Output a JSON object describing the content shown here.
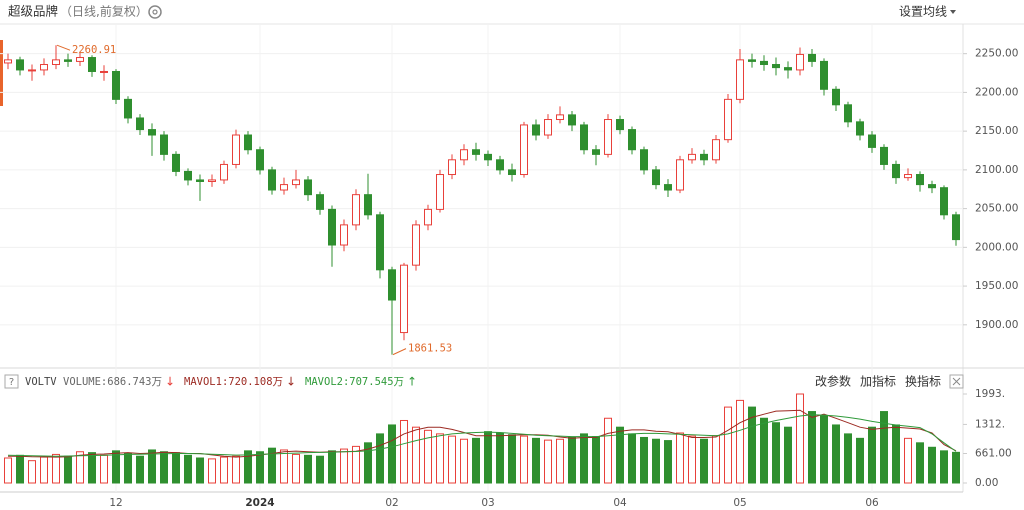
{
  "header": {
    "title": "超级品牌",
    "subtitle": "（日线,前复权）",
    "ma_setting": "设置均线"
  },
  "indicator": {
    "name": "VOLTV",
    "buttons": [
      "改参数",
      "加指标",
      "换指标"
    ]
  },
  "chart_data": [
    {
      "type": "candlestick",
      "categories": [
        null,
        null,
        null,
        null,
        null,
        null,
        null,
        null,
        null,
        "12",
        null,
        null,
        null,
        null,
        null,
        null,
        null,
        null,
        null,
        null,
        null,
        "2024",
        null,
        null,
        null,
        null,
        null,
        null,
        null,
        null,
        null,
        null,
        "02",
        null,
        null,
        null,
        null,
        null,
        null,
        null,
        "03",
        null,
        null,
        null,
        null,
        null,
        null,
        null,
        null,
        null,
        null,
        "04",
        null,
        null,
        null,
        null,
        null,
        null,
        null,
        null,
        null,
        "05",
        null,
        null,
        null,
        null,
        null,
        null,
        null,
        null,
        null,
        null,
        "06",
        null,
        null,
        null,
        null,
        null,
        null,
        null
      ],
      "candles": [
        [
          2238,
          2250,
          2230,
          2242
        ],
        [
          2242,
          2246,
          2222,
          2229
        ],
        [
          2229,
          2236,
          2215,
          2229
        ],
        [
          2229,
          2244,
          2222,
          2236
        ],
        [
          2236,
          2260.91,
          2230,
          2242
        ],
        [
          2242,
          2250,
          2233,
          2240
        ],
        [
          2240,
          2252,
          2234,
          2245
        ],
        [
          2245,
          2248,
          2220,
          2227
        ],
        [
          2227,
          2235,
          2215,
          2227
        ],
        [
          2227,
          2230,
          2185,
          2191
        ],
        [
          2191,
          2195,
          2160,
          2167
        ],
        [
          2167,
          2172,
          2145,
          2152
        ],
        [
          2152,
          2160,
          2118,
          2145
        ],
        [
          2145,
          2150,
          2112,
          2120
        ],
        [
          2120,
          2124,
          2092,
          2098
        ],
        [
          2098,
          2102,
          2080,
          2087
        ],
        [
          2087,
          2094,
          2060,
          2085
        ],
        [
          2085,
          2094,
          2078,
          2087
        ],
        [
          2087,
          2112,
          2082,
          2107
        ],
        [
          2107,
          2152,
          2102,
          2145
        ],
        [
          2145,
          2150,
          2120,
          2126
        ],
        [
          2126,
          2130,
          2094,
          2100
        ],
        [
          2100,
          2104,
          2068,
          2074
        ],
        [
          2074,
          2090,
          2068,
          2081
        ],
        [
          2081,
          2100,
          2076,
          2087
        ],
        [
          2087,
          2092,
          2060,
          2068
        ],
        [
          2068,
          2072,
          2042,
          2049
        ],
        [
          2049,
          2054,
          1975,
          2003
        ],
        [
          2003,
          2036,
          1995,
          2029
        ],
        [
          2029,
          2075,
          2022,
          2068
        ],
        [
          2068,
          2095,
          2036,
          2042
        ],
        [
          2042,
          2046,
          1960,
          1971
        ],
        [
          1971,
          1975,
          1861.53,
          1932
        ],
        [
          1890,
          1980,
          1880,
          1977
        ],
        [
          1977,
          2035,
          1970,
          2029
        ],
        [
          2029,
          2055,
          2022,
          2049
        ],
        [
          2049,
          2100,
          2045,
          2094
        ],
        [
          2094,
          2120,
          2088,
          2113
        ],
        [
          2113,
          2133,
          2106,
          2126
        ],
        [
          2126,
          2135,
          2112,
          2120
        ],
        [
          2120,
          2125,
          2105,
          2113
        ],
        [
          2113,
          2118,
          2094,
          2100
        ],
        [
          2100,
          2108,
          2085,
          2094
        ],
        [
          2094,
          2162,
          2090,
          2158
        ],
        [
          2158,
          2165,
          2138,
          2145
        ],
        [
          2145,
          2172,
          2140,
          2165
        ],
        [
          2165,
          2182,
          2160,
          2171
        ],
        [
          2171,
          2176,
          2150,
          2158
        ],
        [
          2158,
          2162,
          2120,
          2126
        ],
        [
          2126,
          2132,
          2106,
          2120
        ],
        [
          2120,
          2172,
          2116,
          2165
        ],
        [
          2165,
          2170,
          2146,
          2152
        ],
        [
          2152,
          2156,
          2120,
          2126
        ],
        [
          2126,
          2130,
          2094,
          2100
        ],
        [
          2100,
          2105,
          2075,
          2081
        ],
        [
          2081,
          2088,
          2065,
          2074
        ],
        [
          2074,
          2118,
          2070,
          2113
        ],
        [
          2113,
          2128,
          2108,
          2120
        ],
        [
          2120,
          2126,
          2106,
          2113
        ],
        [
          2113,
          2145,
          2108,
          2139
        ],
        [
          2139,
          2198,
          2135,
          2191
        ],
        [
          2191,
          2256,
          2186,
          2242
        ],
        [
          2242,
          2250,
          2232,
          2240
        ],
        [
          2240,
          2248,
          2228,
          2236
        ],
        [
          2236,
          2245,
          2222,
          2232
        ],
        [
          2232,
          2240,
          2218,
          2229
        ],
        [
          2229,
          2258,
          2222,
          2249
        ],
        [
          2249,
          2256,
          2233,
          2240
        ],
        [
          2240,
          2244,
          2196,
          2204
        ],
        [
          2204,
          2208,
          2176,
          2184
        ],
        [
          2184,
          2188,
          2155,
          2162
        ],
        [
          2162,
          2166,
          2138,
          2145
        ],
        [
          2145,
          2150,
          2122,
          2129
        ],
        [
          2129,
          2133,
          2100,
          2107
        ],
        [
          2107,
          2112,
          2082,
          2090
        ],
        [
          2090,
          2102,
          2086,
          2094
        ],
        [
          2094,
          2098,
          2072,
          2081
        ],
        [
          2081,
          2086,
          2070,
          2077
        ],
        [
          2077,
          2080,
          2036,
          2042
        ],
        [
          2042,
          2046,
          2002,
          2010
        ]
      ],
      "up_color": "#e8403a",
      "down_color": "#2f8f2f",
      "ylim": [
        1852,
        2287
      ],
      "yticks": [
        {
          "value": 1900,
          "label": "1900.00"
        },
        {
          "value": 1950,
          "label": "1950.00"
        },
        {
          "value": 2000,
          "label": "2000.00"
        },
        {
          "value": 2050,
          "label": "2050.00"
        },
        {
          "value": 2100,
          "label": "2100.00"
        },
        {
          "value": 2150,
          "label": "2150.00"
        },
        {
          "value": 2200,
          "label": "2200.00"
        },
        {
          "value": 2250,
          "label": "2250.00"
        }
      ],
      "grid": true
    },
    {
      "type": "bar",
      "name": "VOLUME:686.743万",
      "trend": "↓",
      "values": [
        560,
        620,
        500,
        580,
        640,
        600,
        700,
        680,
        620,
        720,
        660,
        600,
        740,
        700,
        680,
        620,
        560,
        540,
        580,
        600,
        720,
        700,
        780,
        740,
        640,
        620,
        600,
        720,
        760,
        820,
        900,
        1100,
        1300,
        1400,
        1250,
        1180,
        1100,
        1050,
        980,
        1000,
        1150,
        1120,
        1080,
        1050,
        1000,
        960,
        980,
        1020,
        1100,
        1040,
        1450,
        1250,
        1100,
        1020,
        980,
        950,
        1120,
        1050,
        980,
        1060,
        1700,
        1850,
        1700,
        1450,
        1350,
        1250,
        1993,
        1600,
        1500,
        1300,
        1100,
        1000,
        1250,
        1600,
        1300,
        1000,
        900,
        800,
        720,
        686.743
      ],
      "series": [
        {
          "name": "MAVOL1:720.108万",
          "trend": "↓",
          "color": "#9c2a22",
          "values": [
            600,
            600,
            590,
            585,
            580,
            590,
            620,
            640,
            650,
            665,
            680,
            660,
            670,
            690,
            680,
            660,
            660,
            630,
            600,
            580,
            600,
            630,
            660,
            700,
            715,
            700,
            690,
            700,
            700,
            710,
            760,
            840,
            950,
            1100,
            1190,
            1250,
            1250,
            1200,
            1130,
            1060,
            1060,
            1060,
            1070,
            1080,
            1080,
            1070,
            1030,
            1000,
            1020,
            1020,
            1110,
            1160,
            1190,
            1190,
            1160,
            1150,
            1090,
            1020,
            1020,
            1030,
            1180,
            1350,
            1470,
            1540,
            1610,
            1620,
            1630,
            1470,
            1540,
            1450,
            1350,
            1250,
            1200,
            1230,
            1250,
            1230,
            1210,
            1120,
            860,
            720.108
          ]
        },
        {
          "name": "MAVOL2:707.545万",
          "trend": "↑",
          "color": "#2f9a3a",
          "values": [
            620,
            615,
            610,
            605,
            600,
            605,
            610,
            615,
            620,
            630,
            640,
            645,
            650,
            655,
            660,
            660,
            655,
            645,
            635,
            625,
            630,
            640,
            650,
            660,
            670,
            680,
            685,
            690,
            700,
            705,
            720,
            760,
            810,
            880,
            950,
            1010,
            1060,
            1100,
            1120,
            1130,
            1140,
            1130,
            1110,
            1090,
            1070,
            1060,
            1050,
            1040,
            1040,
            1040,
            1060,
            1080,
            1100,
            1110,
            1110,
            1100,
            1090,
            1080,
            1070,
            1060,
            1100,
            1180,
            1270,
            1340,
            1400,
            1450,
            1500,
            1530,
            1520,
            1500,
            1470,
            1430,
            1380,
            1340,
            1300,
            1270,
            1240,
            1100,
            900,
            707.545
          ]
        }
      ],
      "ylim": [
        0,
        2150
      ],
      "yticks": [
        {
          "value": 0,
          "label": "0.00"
        },
        {
          "value": 661,
          "label": "661.00"
        },
        {
          "value": 1312,
          "label": "1312."
        },
        {
          "value": 1993,
          "label": "1993."
        }
      ]
    }
  ]
}
